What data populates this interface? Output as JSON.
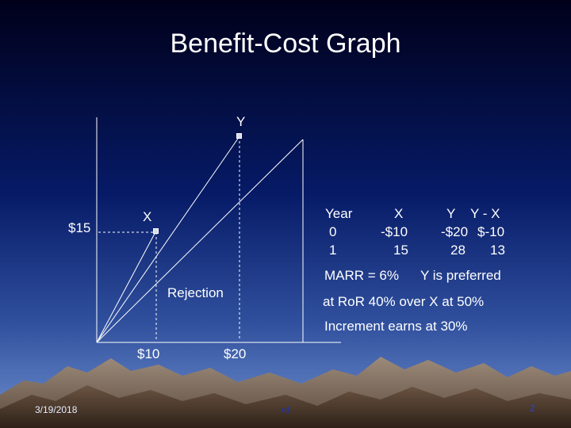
{
  "title": "Benefit-Cost Graph",
  "labels": {
    "y_point": "Y",
    "x_point": "X",
    "y_axis_value": "$15",
    "x_tick_1": "$10",
    "x_tick_2": "$20",
    "rejection": "Rejection"
  },
  "table": {
    "header": [
      "Year",
      "X",
      "Y",
      "Y - X"
    ],
    "rows": [
      [
        "0",
        "-$10",
        "-$20",
        "$-10"
      ],
      [
        "1",
        "15",
        "28",
        "13"
      ]
    ]
  },
  "notes": {
    "marr": "MARR = 6%",
    "preferred": "Y is preferred",
    "ror": "at RoR 40% over X at 50%",
    "increment": "Increment earns at 30%"
  },
  "footer": {
    "date": "3/19/2018",
    "center": "rd",
    "page": "2"
  },
  "colors": {
    "line": "#ffffff",
    "marker": "#d9dde6"
  }
}
